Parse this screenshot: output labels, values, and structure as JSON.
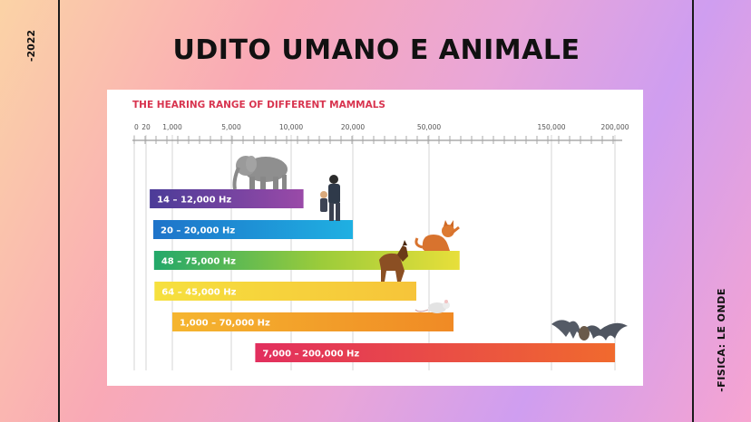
{
  "slide": {
    "title": "UDITO UMANO E ANIMALE",
    "year_label": "-2022",
    "side_label": "-FISICA: LE ONDE"
  },
  "colors": {
    "title_red": "#d8344f",
    "bar_purple": "#7a4aa6",
    "bar_blue": "#1e8fd6",
    "bar_green_start": "#27b36a",
    "bar_yellow": "#f7d93a",
    "bar_orange": "#f39a28",
    "bar_red": "#e63a5a"
  },
  "chart_data": {
    "type": "bar",
    "orientation": "horizontal-range",
    "title": "THE HEARING RANGE OF DIFFERENT MAMMALS",
    "x_ticks": [
      "0",
      "20",
      "1,000",
      "5,000",
      "10,000",
      "20,000",
      "50,000",
      "150,000",
      "200,000"
    ],
    "grid": true,
    "series": [
      {
        "label": "14 – 12,000 Hz",
        "min": 14,
        "max": 12000,
        "icon": "elephant-icon"
      },
      {
        "label": "20 – 20,000 Hz",
        "min": 20,
        "max": 20000,
        "icon": "human-icon"
      },
      {
        "label": "48 – 75,000 Hz",
        "min": 48,
        "max": 75000,
        "icon": "cat-icon"
      },
      {
        "label": "64 – 45,000 Hz",
        "min": 64,
        "max": 45000,
        "icon": "dog-icon"
      },
      {
        "label": "1,000 – 70,000 Hz",
        "min": 1000,
        "max": 70000,
        "icon": "mouse-icon"
      },
      {
        "label": "7,000 – 200,000 Hz",
        "min": 7000,
        "max": 200000,
        "icon": "bat-icon"
      }
    ]
  }
}
